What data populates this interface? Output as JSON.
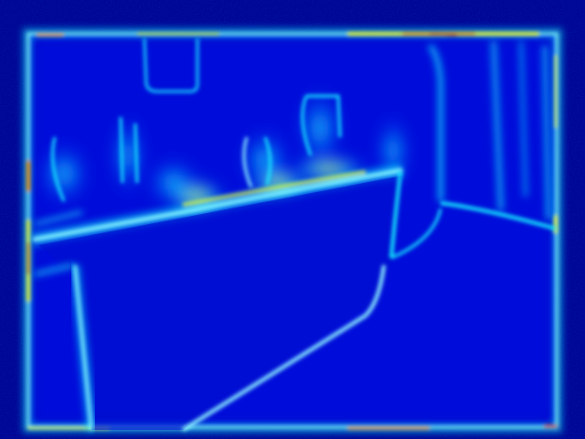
{
  "image": {
    "kind": "edge-magnitude heatmap of an indoor kitchen scene",
    "colormap": "jet",
    "palette": {
      "background": "#00008f",
      "deep_blue": "#0000c8",
      "mid_blue": "#0030ff",
      "cyan": "#14f0ff",
      "light_cyan": "#8ff8ff",
      "yellow": "#f4ff30",
      "orange": "#ff9a00",
      "red": "#e01000"
    }
  }
}
